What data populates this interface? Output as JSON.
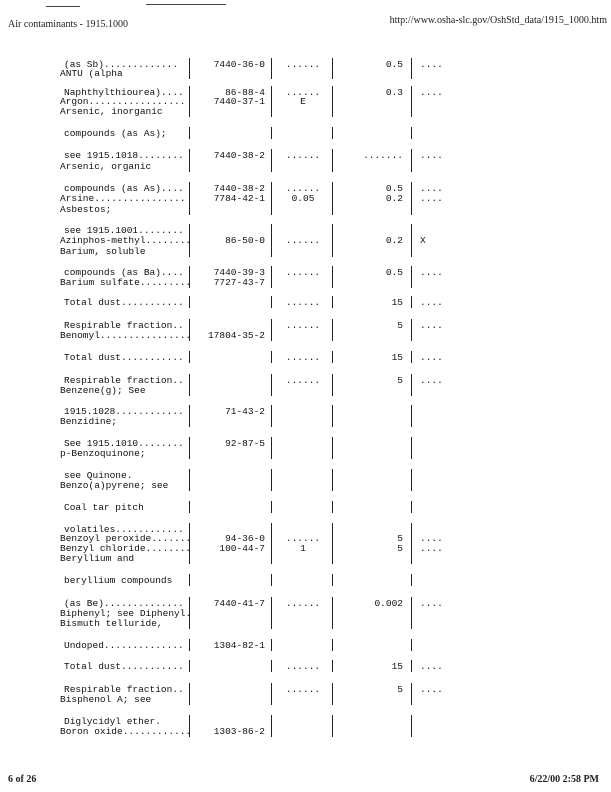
{
  "header": {
    "title": "Air contaminants - 1915.1000",
    "url": "http://www.osha-slc.gov/OshStd_data/1915_1000.htm"
  },
  "footer": {
    "page": "6 of 26",
    "timestamp": "6/22/00 2:58 PM"
  },
  "lines": [
    {
      "name": "(as Sb).............",
      "cas": "7440-36-0",
      "ppm": "......",
      "mg": "0.5",
      "skin": "....",
      "ind": true
    },
    {
      "name": "ANTU (alpha",
      "cas": "",
      "ppm": "",
      "mg": "",
      "skin": ""
    },
    {
      "name": "Naphthylthiourea)....",
      "cas": "86-88-4",
      "ppm": "......",
      "mg": "0.3",
      "skin": "....",
      "ind": true
    },
    {
      "name": "Argon.................",
      "cas": "7440-37-1",
      "ppm": "E",
      "mg": "",
      "skin": ""
    },
    {
      "name": "Arsenic, inorganic",
      "cas": "",
      "ppm": "",
      "mg": "",
      "skin": ""
    },
    {
      "name": "compounds (as As);",
      "cas": "",
      "ppm": "",
      "mg": "",
      "skin": "",
      "ind": true
    },
    {
      "name": "see 1915.1018........",
      "cas": "7440-38-2",
      "ppm": "......",
      "mg": ".......",
      "skin": "....",
      "ind": true
    },
    {
      "name": "Arsenic, organic",
      "cas": "",
      "ppm": "",
      "mg": "",
      "skin": ""
    },
    {
      "name": "compounds (as As)....",
      "cas": "7440-38-2",
      "ppm": "......",
      "mg": "0.5",
      "skin": "....",
      "ind": true
    },
    {
      "name": "Arsine................",
      "cas": "7784-42-1",
      "ppm": "0.05",
      "mg": "0.2",
      "skin": "....",
      "ind": false
    },
    {
      "name": "Asbestos;",
      "cas": "",
      "ppm": "",
      "mg": "",
      "skin": ""
    },
    {
      "name": "see 1915.1001........",
      "cas": "",
      "ppm": "",
      "mg": "",
      "skin": "",
      "ind": true
    },
    {
      "name": "Azinphos-methyl........",
      "cas": "86-50-0",
      "ppm": "......",
      "mg": "0.2",
      "skin": "X"
    },
    {
      "name": "Barium, soluble",
      "cas": "",
      "ppm": "",
      "mg": "",
      "skin": ""
    },
    {
      "name": "compounds (as Ba)....",
      "cas": "7440-39-3",
      "ppm": "......",
      "mg": "0.5",
      "skin": "....",
      "ind": true
    },
    {
      "name": "Barium sulfate.........",
      "cas": "7727-43-7",
      "ppm": "",
      "mg": "",
      "skin": ""
    },
    {
      "name": "Total dust...........",
      "cas": "",
      "ppm": "......",
      "mg": "15",
      "skin": "....",
      "ind": true
    },
    {
      "name": "Respirable fraction..",
      "cas": "",
      "ppm": "......",
      "mg": "5",
      "skin": "....",
      "ind": true
    },
    {
      "name": "Benomyl................",
      "cas": "17804-35-2",
      "ppm": "",
      "mg": "",
      "skin": ""
    },
    {
      "name": "Total dust...........",
      "cas": "",
      "ppm": "......",
      "mg": "15",
      "skin": "....",
      "ind": true
    },
    {
      "name": "Respirable fraction..",
      "cas": "",
      "ppm": "......",
      "mg": "5",
      "skin": "....",
      "ind": true
    },
    {
      "name": "Benzene(g); See",
      "cas": "",
      "ppm": "",
      "mg": "",
      "skin": ""
    },
    {
      "name": "1915.1028............",
      "cas": "71-43-2",
      "ppm": "",
      "mg": "",
      "skin": "",
      "ind": true
    },
    {
      "name": "Benzidine;",
      "cas": "",
      "ppm": "",
      "mg": "",
      "skin": ""
    },
    {
      "name": "See 1915.1010........",
      "cas": "92-87-5",
      "ppm": "",
      "mg": "",
      "skin": "",
      "ind": true
    },
    {
      "name": "p-Benzoquinone;",
      "cas": "",
      "ppm": "",
      "mg": "",
      "skin": ""
    },
    {
      "name": "see Quinone.",
      "cas": "",
      "ppm": "",
      "mg": "",
      "skin": "",
      "ind": true
    },
    {
      "name": "Benzo(a)pyrene; see",
      "cas": "",
      "ppm": "",
      "mg": "",
      "skin": ""
    },
    {
      "name": "Coal tar pitch",
      "cas": "",
      "ppm": "",
      "mg": "",
      "skin": "",
      "ind": true
    },
    {
      "name": "volatiles............",
      "cas": "",
      "ppm": "",
      "mg": "",
      "skin": "",
      "ind": true
    },
    {
      "name": "Benzoyl peroxide.......",
      "cas": "94-36-0",
      "ppm": "......",
      "mg": "5",
      "skin": "...."
    },
    {
      "name": "Benzyl chloride........",
      "cas": "100-44-7",
      "ppm": "1",
      "mg": "5",
      "skin": "...."
    },
    {
      "name": "Beryllium and",
      "cas": "",
      "ppm": "",
      "mg": "",
      "skin": ""
    },
    {
      "name": "beryllium compounds",
      "cas": "",
      "ppm": "",
      "mg": "",
      "skin": "",
      "ind": true
    },
    {
      "name": "(as Be)..............",
      "cas": "7440-41-7",
      "ppm": "......",
      "mg": "0.002",
      "skin": "....",
      "ind": true
    },
    {
      "name": "Biphenyl; see Diphenyl.",
      "cas": "",
      "ppm": "",
      "mg": "",
      "skin": ""
    },
    {
      "name": "Bismuth telluride,",
      "cas": "",
      "ppm": "",
      "mg": "",
      "skin": ""
    },
    {
      "name": "Undoped..............",
      "cas": "1304-82-1",
      "ppm": "",
      "mg": "",
      "skin": "",
      "ind": true
    },
    {
      "name": "Total dust...........",
      "cas": "",
      "ppm": "......",
      "mg": "15",
      "skin": "....",
      "ind": true
    },
    {
      "name": "Respirable fraction..",
      "cas": "",
      "ppm": "......",
      "mg": "5",
      "skin": "....",
      "ind": true
    },
    {
      "name": "Bisphenol A; see",
      "cas": "",
      "ppm": "",
      "mg": "",
      "skin": ""
    },
    {
      "name": "Diglycidyl ether.",
      "cas": "",
      "ppm": "",
      "mg": "",
      "skin": "",
      "ind": true
    },
    {
      "name": "Boron oxide............",
      "cas": "1303-86-2",
      "ppm": "",
      "mg": "",
      "skin": ""
    }
  ]
}
